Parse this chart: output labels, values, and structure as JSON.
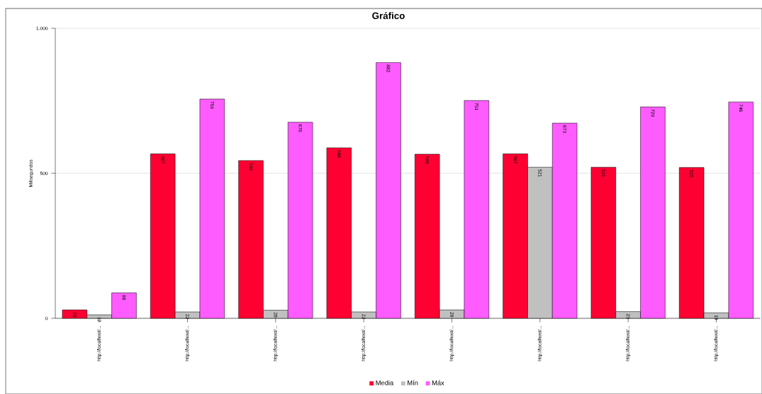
{
  "chart_data": {
    "type": "bar",
    "title": "Gráfico",
    "ylabel": "Milisegundos",
    "categories": [
      "http://localhost/...",
      "http://localhost/...",
      "http://localhost/...",
      "http://localhost/...",
      "http://localhost/...",
      "http://localhost/...",
      "http://localhost/...",
      "http://localhost/..."
    ],
    "series": [
      {
        "name": "Media",
        "color": "#ff0033",
        "values": [
          29,
          567,
          544,
          588,
          566,
          567,
          521,
          520
        ]
      },
      {
        "name": "Mín",
        "color": "#c0c0c0",
        "values": [
          12,
          22,
          28,
          22,
          29,
          521,
          23,
          19
        ]
      },
      {
        "name": "Máx",
        "color": "#ff5cff",
        "values": [
          88,
          756,
          676,
          882,
          751,
          673,
          729,
          746
        ]
      }
    ],
    "ylim": [
      0,
      1000
    ],
    "yticks": [
      0,
      500,
      {
        "value": 1000,
        "label": "1.000"
      }
    ],
    "grid": "y",
    "legend": "bottom",
    "data_labels": true
  }
}
